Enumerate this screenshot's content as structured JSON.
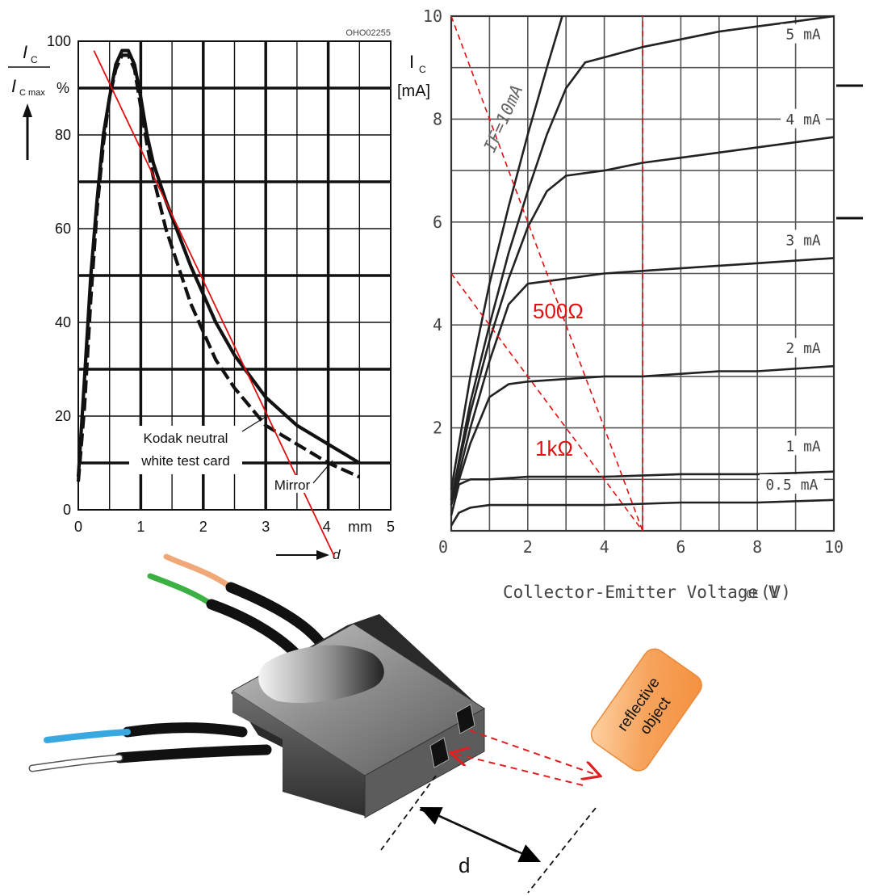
{
  "chart_data": [
    {
      "type": "line",
      "title": "",
      "code": "OHO02255",
      "ylabel": {
        "main": "I",
        "sub": "C",
        "den_main": "I",
        "den_sub": "C max",
        "unit": "%"
      },
      "xlabel": "d",
      "xunit": "mm",
      "xlim": [
        0,
        5
      ],
      "ylim": [
        0,
        100
      ],
      "xticks": [
        "0",
        "1",
        "2",
        "3",
        "4",
        "5"
      ],
      "yticks": [
        "0",
        "20",
        "40",
        "60",
        "80",
        "100"
      ],
      "grid": true,
      "annotations": [
        "Kodak neutral",
        "white test card",
        "Mirror"
      ],
      "series": [
        {
          "name": "Kodak neutral white test card",
          "style": "solid",
          "x": [
            0.0,
            0.1,
            0.2,
            0.3,
            0.4,
            0.5,
            0.6,
            0.7,
            0.8,
            0.9,
            1.0,
            1.1,
            1.2,
            1.4,
            1.6,
            1.8,
            2.0,
            2.2,
            2.5,
            3.0,
            3.5,
            4.0,
            4.5
          ],
          "y": [
            7,
            28,
            50,
            66,
            80,
            88,
            95,
            98,
            98,
            95,
            88,
            80,
            74,
            66,
            59,
            52,
            46,
            40,
            33,
            24,
            18,
            14,
            10
          ]
        },
        {
          "name": "Mirror",
          "style": "dashed",
          "x": [
            0.0,
            0.1,
            0.2,
            0.3,
            0.4,
            0.5,
            0.6,
            0.7,
            0.8,
            0.9,
            1.0,
            1.1,
            1.2,
            1.4,
            1.6,
            1.8,
            2.0,
            2.2,
            2.5,
            3.0,
            3.5,
            4.0,
            4.5
          ],
          "y": [
            6,
            22,
            45,
            64,
            78,
            88,
            94,
            97,
            97,
            94,
            86,
            78,
            71,
            60,
            52,
            44,
            38,
            32,
            26,
            18,
            14,
            10,
            7
          ]
        },
        {
          "name": "",
          "style": "red-line",
          "x": [
            0.25,
            4.1
          ],
          "y": [
            98,
            -10
          ]
        }
      ]
    },
    {
      "type": "line",
      "title": "",
      "ylabel": {
        "main": "I",
        "sub": "C",
        "unit": "[mA]"
      },
      "xlabel": "Collector-Emitter Voltage V",
      "xlabel_sub": "CE",
      "xlabel_unit": "(V)",
      "xlim": [
        0,
        10
      ],
      "ylim": [
        0,
        10
      ],
      "xticks": [
        "0",
        "2",
        "4",
        "6",
        "8",
        "10"
      ],
      "yticks": [
        "2",
        "4",
        "6",
        "8",
        "10"
      ],
      "grid": true,
      "annotations": [
        "IF=10mA",
        "500Ω",
        "1kΩ"
      ],
      "series": [
        {
          "name": "IF=10mA",
          "x": [
            0,
            0.5,
            1.0,
            1.5,
            2.0,
            2.5,
            2.9
          ],
          "y": [
            0.8,
            3.0,
            4.8,
            6.3,
            7.7,
            9.0,
            10.0
          ]
        },
        {
          "name": "5 mA",
          "x": [
            0,
            0.5,
            1.0,
            1.5,
            2.0,
            2.5,
            3.0,
            3.5,
            4.0,
            5.0,
            6.0,
            7.0,
            8.0,
            9.0,
            10.0
          ],
          "y": [
            0.6,
            2.5,
            4.0,
            5.4,
            6.6,
            7.7,
            8.6,
            9.1,
            9.2,
            9.4,
            9.55,
            9.7,
            9.8,
            9.9,
            10.0
          ]
        },
        {
          "name": "4 mA",
          "x": [
            0,
            0.5,
            1.0,
            1.5,
            2.0,
            2.5,
            3.0,
            4.0,
            5.0,
            6.0,
            7.0,
            8.0,
            9.0,
            10.0
          ],
          "y": [
            0.6,
            2.3,
            3.7,
            4.9,
            5.9,
            6.6,
            6.9,
            7.0,
            7.15,
            7.25,
            7.35,
            7.45,
            7.55,
            7.65
          ]
        },
        {
          "name": "3 mA",
          "x": [
            0,
            0.5,
            1.0,
            1.5,
            2.0,
            3.0,
            4.0,
            5.0,
            6.0,
            7.0,
            8.0,
            9.0,
            10.0
          ],
          "y": [
            0.5,
            2.0,
            3.3,
            4.4,
            4.8,
            4.9,
            5.0,
            5.05,
            5.1,
            5.15,
            5.2,
            5.25,
            5.3
          ]
        },
        {
          "name": "2 mA",
          "x": [
            0,
            0.5,
            1.0,
            1.5,
            2.0,
            3.0,
            4.0,
            5.0,
            6.0,
            7.0,
            8.0,
            9.0,
            10.0
          ],
          "y": [
            0.5,
            1.7,
            2.6,
            2.85,
            2.9,
            2.95,
            3.0,
            3.0,
            3.05,
            3.1,
            3.1,
            3.15,
            3.2
          ]
        },
        {
          "name": "1 mA",
          "x": [
            0,
            0.2,
            0.5,
            1.0,
            2.0,
            4.0,
            6.0,
            8.0,
            10.0
          ],
          "y": [
            0.3,
            0.9,
            1.0,
            1.0,
            1.05,
            1.05,
            1.1,
            1.1,
            1.15
          ]
        },
        {
          "name": "0.5 mA",
          "x": [
            0,
            0.2,
            0.5,
            1.0,
            2.0,
            4.0,
            6.0,
            8.0,
            10.0
          ],
          "y": [
            0.1,
            0.35,
            0.45,
            0.5,
            0.5,
            0.5,
            0.55,
            0.55,
            0.6
          ]
        },
        {
          "name": "500Ω",
          "style": "red-dashed",
          "x": [
            0,
            5
          ],
          "y": [
            10,
            0
          ]
        },
        {
          "name": "1kΩ",
          "style": "red-dashed",
          "x": [
            0,
            5
          ],
          "y": [
            5,
            0
          ]
        },
        {
          "name": "",
          "style": "red-dashed-vertical",
          "x": [
            5,
            5
          ],
          "y": [
            0,
            10
          ]
        }
      ]
    }
  ],
  "diagram": {
    "label_reflective": [
      "reflective",
      "object"
    ],
    "label_distance": "d",
    "colors": {
      "wire_orange": "#f0a878",
      "wire_green": "#3cb043",
      "wire_blue": "#3aa8e0",
      "wire_white": "#ffffff",
      "object_fill": "#f4a460",
      "beam": "#e02020"
    }
  }
}
